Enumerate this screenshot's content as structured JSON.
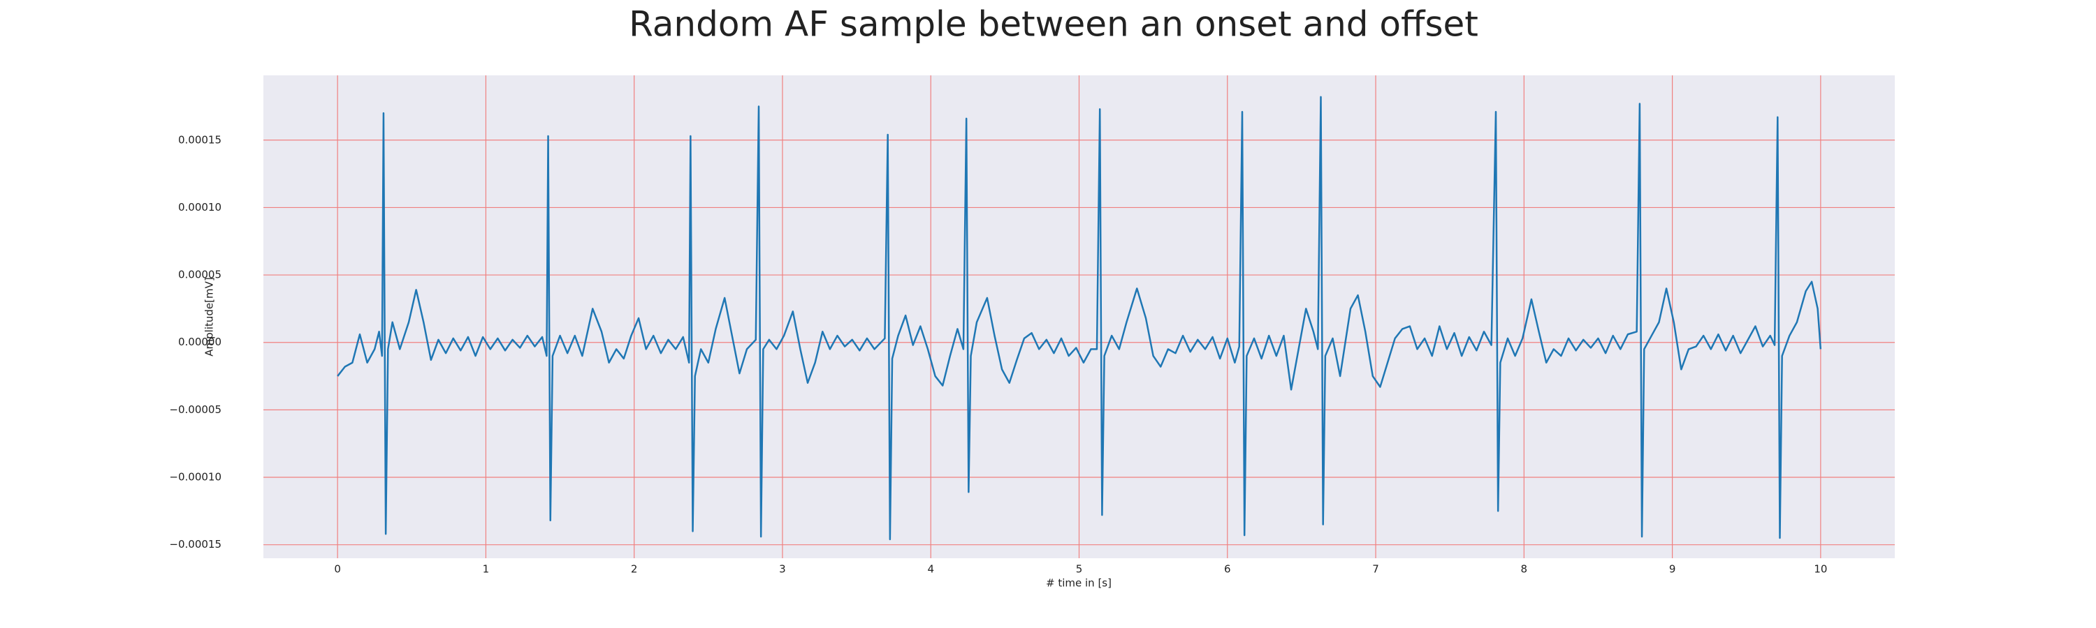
{
  "chart_data": {
    "type": "line",
    "title": "Random AF sample between an onset and offset",
    "xlabel": "# time in [s]",
    "ylabel": "Amplitude[mV]",
    "xlim": [
      -0.5,
      10.5
    ],
    "ylim": [
      -0.00016,
      0.000198
    ],
    "xticks": [
      0,
      1,
      2,
      3,
      4,
      5,
      6,
      7,
      8,
      9,
      10
    ],
    "yticks": [
      {
        "value": -0.00015,
        "label": "−0.00015"
      },
      {
        "value": -0.0001,
        "label": "−0.00010"
      },
      {
        "value": -5e-05,
        "label": "−0.00005"
      },
      {
        "value": 0,
        "label": "0.00000"
      },
      {
        "value": 5e-05,
        "label": "0.00005"
      },
      {
        "value": 0.0001,
        "label": "0.00010"
      },
      {
        "value": 0.00015,
        "label": "0.00015"
      }
    ],
    "grid": true,
    "grid_color": "#f08080",
    "background": "#eaeaf2",
    "series": [
      {
        "color": "#1f77b4",
        "x": [
          0.0,
          0.05,
          0.1,
          0.15,
          0.2,
          0.25,
          0.28,
          0.3,
          0.31,
          0.325,
          0.34,
          0.37,
          0.42,
          0.48,
          0.53,
          0.58,
          0.63,
          0.68,
          0.73,
          0.78,
          0.83,
          0.88,
          0.93,
          0.98,
          1.03,
          1.08,
          1.13,
          1.18,
          1.23,
          1.28,
          1.33,
          1.38,
          1.41,
          1.42,
          1.435,
          1.45,
          1.5,
          1.55,
          1.6,
          1.65,
          1.72,
          1.78,
          1.83,
          1.88,
          1.93,
          1.98,
          2.03,
          2.08,
          2.13,
          2.18,
          2.23,
          2.28,
          2.33,
          2.37,
          2.38,
          2.395,
          2.41,
          2.45,
          2.5,
          2.55,
          2.61,
          2.66,
          2.71,
          2.76,
          2.82,
          2.84,
          2.855,
          2.87,
          2.91,
          2.96,
          3.01,
          3.07,
          3.12,
          3.17,
          3.22,
          3.27,
          3.32,
          3.37,
          3.42,
          3.47,
          3.52,
          3.57,
          3.62,
          3.69,
          3.71,
          3.725,
          3.74,
          3.78,
          3.83,
          3.88,
          3.93,
          3.98,
          4.03,
          4.08,
          4.13,
          4.18,
          4.22,
          4.24,
          4.255,
          4.27,
          4.31,
          4.38,
          4.43,
          4.48,
          4.53,
          4.58,
          4.63,
          4.68,
          4.73,
          4.78,
          4.83,
          4.88,
          4.93,
          4.98,
          5.03,
          5.08,
          5.12,
          5.14,
          5.155,
          5.17,
          5.22,
          5.27,
          5.32,
          5.39,
          5.45,
          5.5,
          5.55,
          5.6,
          5.65,
          5.7,
          5.75,
          5.8,
          5.85,
          5.9,
          5.95,
          6.0,
          6.05,
          6.08,
          6.1,
          6.115,
          6.13,
          6.18,
          6.23,
          6.28,
          6.33,
          6.38,
          6.43,
          6.48,
          6.53,
          6.58,
          6.61,
          6.63,
          6.645,
          6.66,
          6.71,
          6.76,
          6.83,
          6.88,
          6.93,
          6.98,
          7.03,
          7.08,
          7.13,
          7.18,
          7.23,
          7.28,
          7.33,
          7.38,
          7.43,
          7.48,
          7.53,
          7.58,
          7.63,
          7.68,
          7.73,
          7.78,
          7.81,
          7.825,
          7.84,
          7.89,
          7.94,
          7.99,
          8.05,
          8.1,
          8.15,
          8.2,
          8.25,
          8.3,
          8.35,
          8.4,
          8.45,
          8.5,
          8.55,
          8.6,
          8.65,
          8.7,
          8.76,
          8.78,
          8.795,
          8.81,
          8.86,
          8.91,
          8.96,
          9.01,
          9.06,
          9.11,
          9.16,
          9.21,
          9.26,
          9.31,
          9.36,
          9.41,
          9.46,
          9.51,
          9.56,
          9.61,
          9.66,
          9.69,
          9.71,
          9.725,
          9.74,
          9.79,
          9.84,
          9.9,
          9.94,
          9.98,
          10.0
        ],
        "values": [
          -2.5e-05,
          -1.8e-05,
          -1.5e-05,
          6e-06,
          -1.5e-05,
          -5e-06,
          8e-06,
          -1e-05,
          0.00017,
          -0.000142,
          -5e-06,
          1.5e-05,
          -5e-06,
          1.5e-05,
          3.9e-05,
          1.5e-05,
          -1.3e-05,
          2e-06,
          -8e-06,
          3e-06,
          -6e-06,
          4e-06,
          -1e-05,
          4e-06,
          -5e-06,
          3e-06,
          -6e-06,
          2e-06,
          -4e-06,
          5e-06,
          -3e-06,
          4e-06,
          -1e-05,
          0.000153,
          -0.000132,
          -1e-05,
          5e-06,
          -8e-06,
          5e-06,
          -1e-05,
          2.5e-05,
          8e-06,
          -1.5e-05,
          -5e-06,
          -1.2e-05,
          5e-06,
          1.8e-05,
          -5e-06,
          5e-06,
          -8e-06,
          2e-06,
          -5e-06,
          4e-06,
          -1.5e-05,
          0.000153,
          -0.00014,
          -2.5e-05,
          -5e-06,
          -1.5e-05,
          1e-05,
          3.3e-05,
          5e-06,
          -2.3e-05,
          -5e-06,
          2e-06,
          0.000175,
          -0.000144,
          -5e-06,
          2e-06,
          -5e-06,
          5e-06,
          2.3e-05,
          -5e-06,
          -3e-05,
          -1.5e-05,
          8e-06,
          -5e-06,
          5e-06,
          -3e-06,
          2e-06,
          -6e-06,
          3e-06,
          -5e-06,
          3e-06,
          0.000154,
          -0.000146,
          -1.2e-05,
          5e-06,
          2e-05,
          -2e-06,
          1.2e-05,
          -5e-06,
          -2.5e-05,
          -3.2e-05,
          -1e-05,
          1e-05,
          -5e-06,
          0.000166,
          -0.000111,
          -1e-05,
          1.5e-05,
          3.3e-05,
          5e-06,
          -2e-05,
          -3e-05,
          -1.3e-05,
          3e-06,
          7e-06,
          -5e-06,
          2e-06,
          -8e-06,
          3e-06,
          -1e-05,
          -4e-06,
          -1.5e-05,
          -5e-06,
          -5e-06,
          0.000173,
          -0.000128,
          -1e-05,
          5e-06,
          -5e-06,
          1.5e-05,
          4e-05,
          1.8e-05,
          -1e-05,
          -1.8e-05,
          -5e-06,
          -8e-06,
          5e-06,
          -7e-06,
          2e-06,
          -5e-06,
          4e-06,
          -1.2e-05,
          3e-06,
          -1.5e-05,
          -3e-06,
          0.000171,
          -0.000143,
          -1e-05,
          3e-06,
          -1.2e-05,
          5e-06,
          -1e-05,
          5e-06,
          -3.5e-05,
          -5e-06,
          2.5e-05,
          8e-06,
          -5e-06,
          0.000182,
          -0.000135,
          -1e-05,
          3e-06,
          -2.5e-05,
          2.5e-05,
          3.5e-05,
          8e-06,
          -2.5e-05,
          -3.3e-05,
          -1.5e-05,
          3e-06,
          1e-05,
          1.2e-05,
          -5e-06,
          3e-06,
          -1e-05,
          1.2e-05,
          -5e-06,
          7e-06,
          -1e-05,
          4e-06,
          -6e-06,
          8e-06,
          -2e-06,
          0.000171,
          -0.000125,
          -1.5e-05,
          3e-06,
          -1e-05,
          3e-06,
          3.2e-05,
          8e-06,
          -1.5e-05,
          -5e-06,
          -1e-05,
          3e-06,
          -6e-06,
          2e-06,
          -4e-06,
          3e-06,
          -8e-06,
          5e-06,
          -5e-06,
          6e-06,
          8e-06,
          0.000177,
          -0.000144,
          -5e-06,
          5e-06,
          1.5e-05,
          4e-05,
          1.5e-05,
          -2e-05,
          -5e-06,
          -3e-06,
          5e-06,
          -5e-06,
          6e-06,
          -6e-06,
          5e-06,
          -8e-06,
          2e-06,
          1.2e-05,
          -3e-06,
          5e-06,
          -2e-06,
          0.000167,
          -0.000145,
          -1e-05,
          5e-06,
          1.5e-05,
          3.8e-05,
          4.5e-05,
          2.5e-05,
          -5e-06
        ]
      }
    ]
  }
}
